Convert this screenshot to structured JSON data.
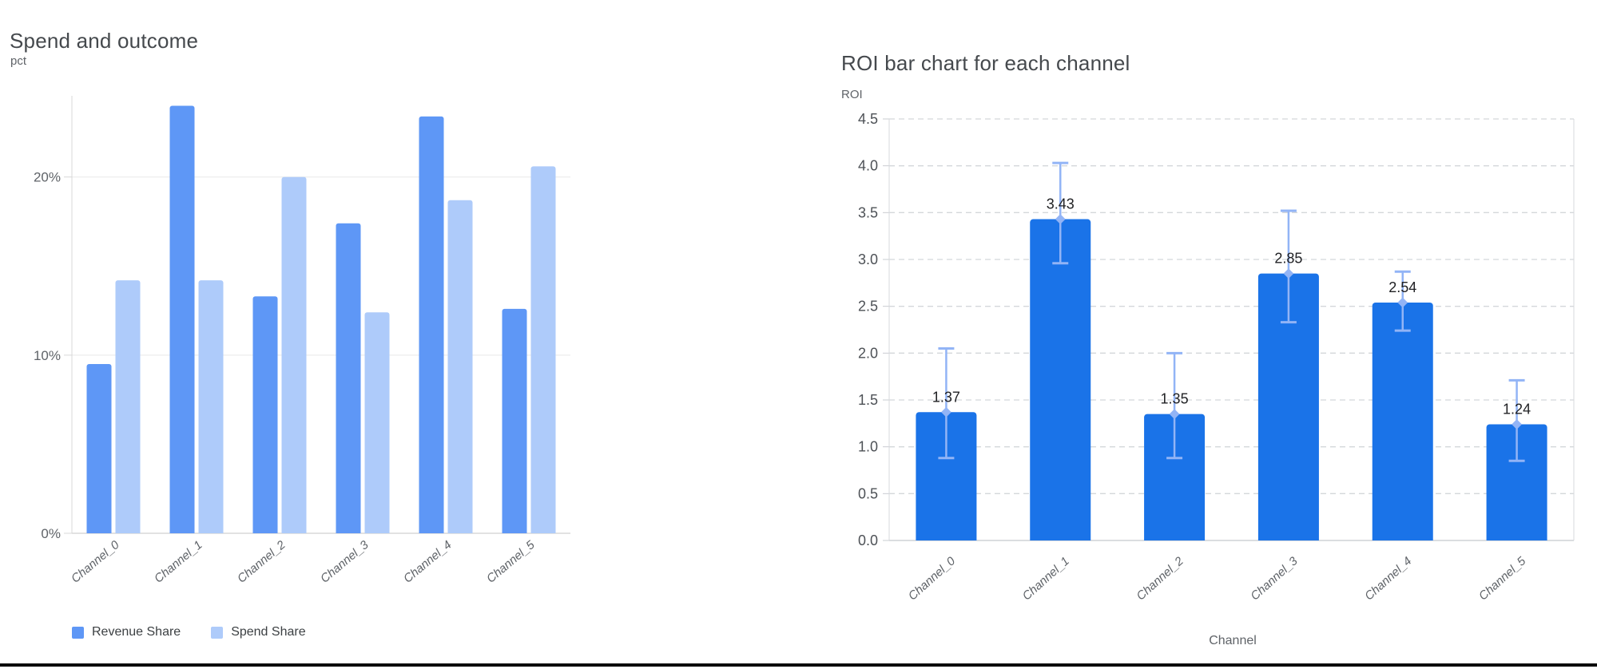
{
  "chart_data": [
    {
      "type": "bar",
      "title": "Spend and outcome",
      "ylabel": "pct",
      "xlabel": "",
      "categories": [
        "Channel_0",
        "Channel_1",
        "Channel_2",
        "Channel_3",
        "Channel_4",
        "Channel_5"
      ],
      "series": [
        {
          "name": "Revenue Share",
          "color": "#5e97f6",
          "values": [
            9.5,
            24.0,
            13.3,
            17.4,
            23.4,
            12.6
          ]
        },
        {
          "name": "Spend Share",
          "color": "#aecbfa",
          "values": [
            14.2,
            14.2,
            20.0,
            12.4,
            18.7,
            20.6
          ]
        }
      ],
      "yticks": [
        {
          "value": 0,
          "label": "0%"
        },
        {
          "value": 10,
          "label": "10%"
        },
        {
          "value": 20,
          "label": "20%"
        }
      ],
      "ylim": [
        0,
        24.2
      ],
      "grid": "solid",
      "legend_position": "bottom"
    },
    {
      "type": "bar",
      "title": "ROI bar chart for each channel",
      "ylabel": "ROI",
      "xlabel": "Channel",
      "categories": [
        "Channel_0",
        "Channel_1",
        "Channel_2",
        "Channel_3",
        "Channel_4",
        "Channel_5"
      ],
      "values": [
        1.37,
        3.43,
        1.35,
        2.85,
        2.54,
        1.24
      ],
      "data_labels": [
        "1.37",
        "3.43",
        "1.35",
        "2.85",
        "2.54",
        "1.24"
      ],
      "error_bars": {
        "low": [
          0.88,
          2.96,
          0.88,
          2.33,
          2.24,
          0.85
        ],
        "high": [
          2.05,
          4.03,
          2.0,
          3.52,
          2.87,
          1.71
        ]
      },
      "ylim": [
        0,
        4.5
      ],
      "ytick_step": 0.5,
      "bar_color": "#1a73e8",
      "error_color": "#92b4f6",
      "grid": "dashed",
      "legend_position": "none"
    }
  ]
}
